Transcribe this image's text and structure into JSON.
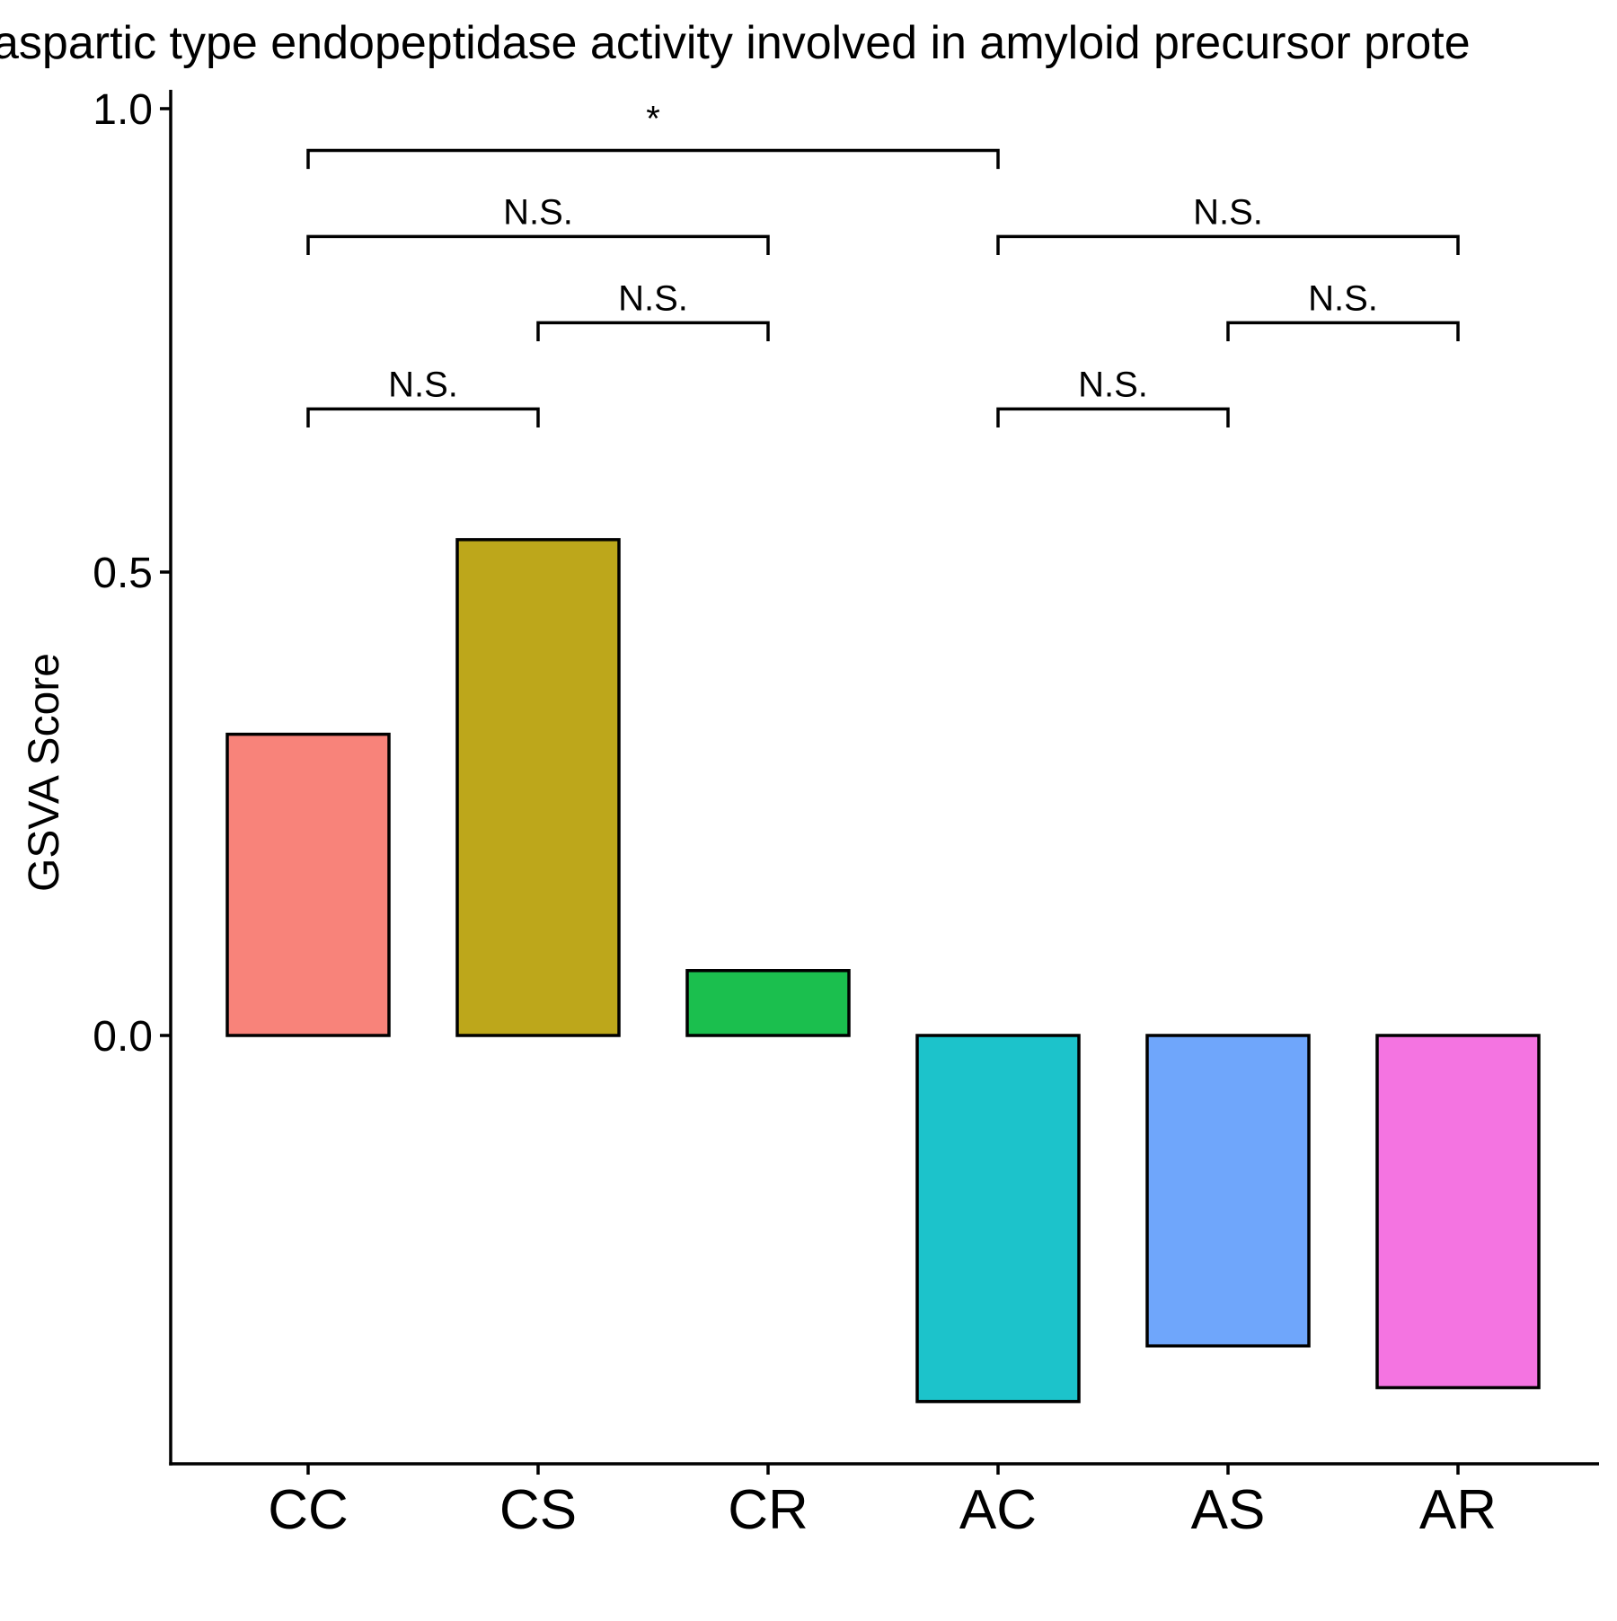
{
  "chart_data": {
    "type": "bar",
    "title": "aspartic type endopeptidase activity involved in amyloid precursor prote",
    "xlabel": "",
    "ylabel": "GSVA Score",
    "ylim": [
      -0.46,
      1.02
    ],
    "yticks": [
      "0.0",
      "0.5",
      "1.0"
    ],
    "ytick_values": [
      0.0,
      0.5,
      1.0
    ],
    "categories": [
      "CC",
      "CS",
      "CR",
      "AC",
      "AS",
      "AR"
    ],
    "values": [
      0.325,
      0.535,
      0.07,
      -0.395,
      -0.335,
      -0.38
    ],
    "colors": [
      "#F8837A",
      "#BDA71B",
      "#1BBF4E",
      "#1CC3CB",
      "#6FA6FB",
      "#F474E1"
    ],
    "grid": false,
    "legend": "none",
    "comparisons": [
      {
        "from": "CC",
        "to": "AC",
        "label": "*",
        "y": 0.955
      },
      {
        "from": "CC",
        "to": "CR",
        "label": "N.S.",
        "y": 0.862
      },
      {
        "from": "AC",
        "to": "AR",
        "label": "N.S.",
        "y": 0.862
      },
      {
        "from": "CS",
        "to": "CR",
        "label": "N.S.",
        "y": 0.769
      },
      {
        "from": "AS",
        "to": "AR",
        "label": "N.S.",
        "y": 0.769
      },
      {
        "from": "CC",
        "to": "CS",
        "label": "N.S.",
        "y": 0.676
      },
      {
        "from": "AC",
        "to": "AS",
        "label": "N.S.",
        "y": 0.676
      }
    ]
  }
}
